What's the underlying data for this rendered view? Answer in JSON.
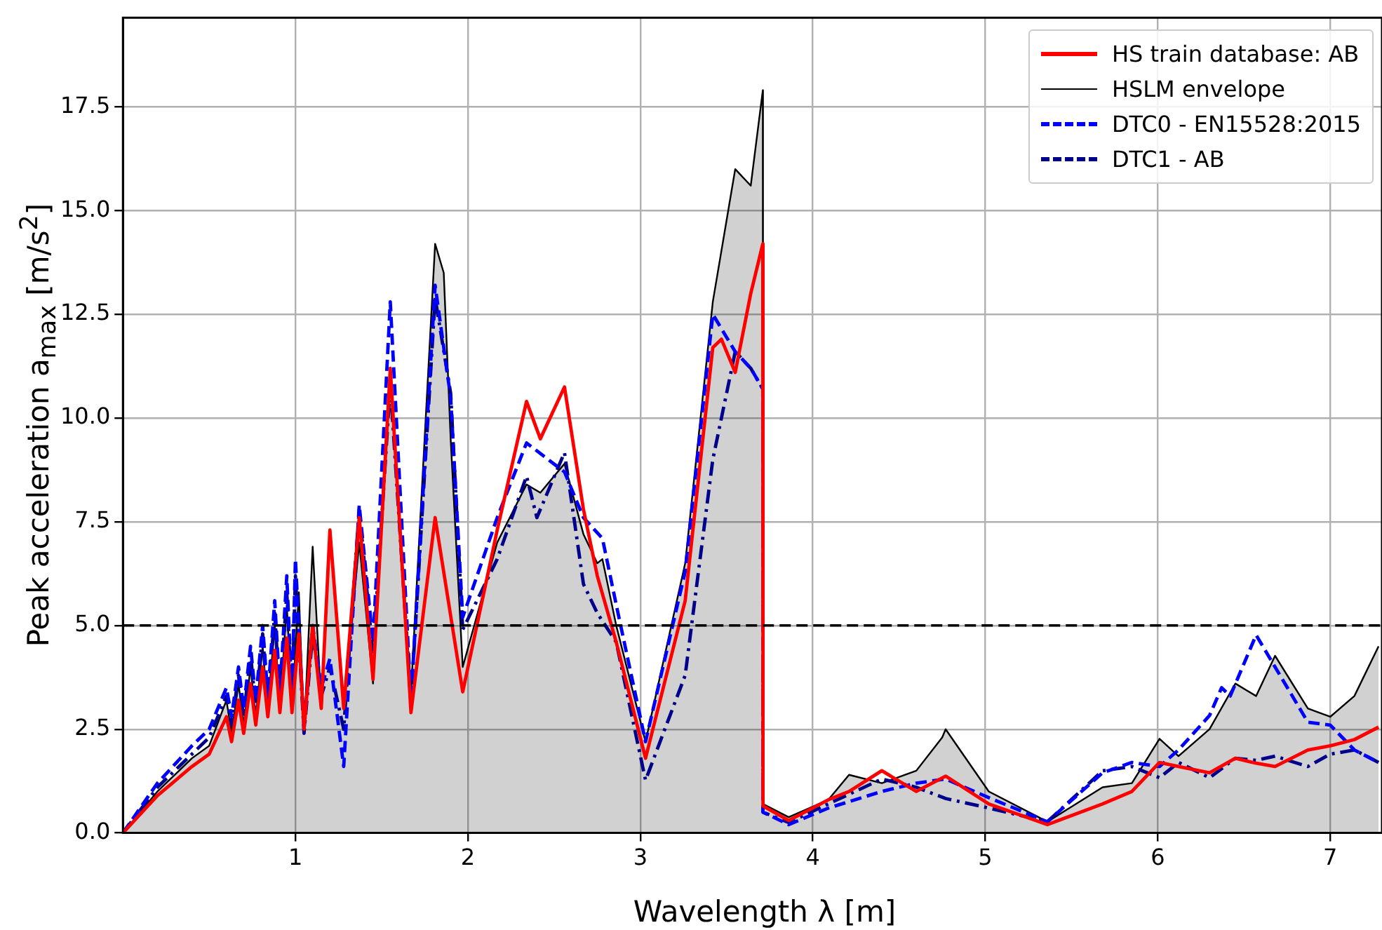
{
  "chart_data": {
    "type": "line",
    "xlabel": "Wavelength λ [m]",
    "ylabel": "Peak acceleration a$_{max}$ [m/s$^{2}$]",
    "xlim": [
      0,
      7.3
    ],
    "xticks": [
      1,
      2,
      3,
      4,
      5,
      6,
      7
    ],
    "ylim": [
      0,
      19.65
    ],
    "yticks": [
      {
        "value": 0,
        "label": "0.0"
      },
      2.5,
      {
        "value": 5,
        "label": "5.0"
      },
      7.5,
      {
        "value": 10,
        "label": "10.0"
      },
      12.5,
      {
        "value": 15,
        "label": "15.0"
      },
      17.5
    ],
    "grid": true,
    "legend": "top right",
    "marker": "none",
    "ref_lines": [
      {
        "axis": "y",
        "value": 5,
        "color": "#000000",
        "line_style": "dashed"
      }
    ],
    "series": [
      {
        "name": "HSLM envelope",
        "type": "area",
        "color": "#000000",
        "line_style": "solid",
        "x": [
          0,
          0.2,
          0.4,
          0.5,
          0.6,
          0.63,
          0.67,
          0.7,
          0.74,
          0.77,
          0.81,
          0.84,
          0.88,
          0.91,
          0.95,
          0.98,
          1.02,
          1.05,
          1.1,
          1.15,
          1.2,
          1.28,
          1.37,
          1.45,
          1.55,
          1.67,
          1.81,
          1.86,
          1.9,
          1.97,
          2.17,
          2.34,
          2.42,
          2.56,
          2.67,
          2.75,
          2.78,
          2.86,
          3.03,
          3.26,
          3.42,
          3.55,
          3.64,
          3.71,
          3.711,
          3.86,
          4.09,
          4.21,
          4.4,
          4.6,
          4.75,
          4.77,
          5.02,
          5.36,
          5.68,
          5.85,
          6.01,
          6.12,
          6.3,
          6.45,
          6.57,
          6.68,
          6.87,
          7.0,
          7.14,
          7.28
        ],
        "values": [
          0,
          1.0,
          1.8,
          2.1,
          3.2,
          2.4,
          3.6,
          2.6,
          4.0,
          2.8,
          4.5,
          3.0,
          5.0,
          3.0,
          5.5,
          3.0,
          5.8,
          2.4,
          6.9,
          3.1,
          7.3,
          3.0,
          7.0,
          3.6,
          11.0,
          3.4,
          14.2,
          13.5,
          9.5,
          4.0,
          7.0,
          8.4,
          8.2,
          8.9,
          7.2,
          6.5,
          6.6,
          5.0,
          2.2,
          6.5,
          12.8,
          16.0,
          15.6,
          17.9,
          0.7,
          0.38,
          0.8,
          1.4,
          1.2,
          1.5,
          2.3,
          2.5,
          1.0,
          0.27,
          1.1,
          1.2,
          2.27,
          1.85,
          2.5,
          3.6,
          3.3,
          4.27,
          3.0,
          2.8,
          3.3,
          4.5
        ]
      },
      {
        "name": "HS train database: AB",
        "color": "#ff0000",
        "line_style": "solid",
        "x": [
          0,
          0.2,
          0.4,
          0.5,
          0.6,
          0.63,
          0.67,
          0.7,
          0.74,
          0.77,
          0.81,
          0.84,
          0.88,
          0.91,
          0.95,
          0.98,
          1.02,
          1.05,
          1.1,
          1.15,
          1.2,
          1.28,
          1.37,
          1.45,
          1.55,
          1.67,
          1.81,
          1.97,
          2.17,
          2.34,
          2.42,
          2.56,
          2.67,
          2.75,
          2.86,
          3.03,
          3.26,
          3.42,
          3.47,
          3.55,
          3.64,
          3.71,
          3.711,
          3.86,
          4.09,
          4.21,
          4.4,
          4.6,
          4.77,
          5.02,
          5.36,
          5.68,
          5.85,
          6.01,
          6.12,
          6.3,
          6.45,
          6.57,
          6.68,
          6.87,
          7.0,
          7.14,
          7.28
        ],
        "values": [
          0,
          0.9,
          1.6,
          1.9,
          2.8,
          2.2,
          3.2,
          2.4,
          3.6,
          2.6,
          4.0,
          2.8,
          4.4,
          2.9,
          4.7,
          2.9,
          4.8,
          2.5,
          5.0,
          3.0,
          7.3,
          3.0,
          7.6,
          3.7,
          11.2,
          2.9,
          7.6,
          3.4,
          7.3,
          10.4,
          9.5,
          10.75,
          7.8,
          6.2,
          4.6,
          1.8,
          5.6,
          11.7,
          11.9,
          11.1,
          13.0,
          14.2,
          0.65,
          0.3,
          0.8,
          1.0,
          1.5,
          1.0,
          1.37,
          0.7,
          0.2,
          0.7,
          1.0,
          1.7,
          1.6,
          1.45,
          1.8,
          1.68,
          1.6,
          2.0,
          2.1,
          2.25,
          2.55
        ]
      },
      {
        "name": "DTC0 - EN15528:2015",
        "color": "#0000ff",
        "line_style": "dashed",
        "x": [
          0,
          0.2,
          0.4,
          0.5,
          0.6,
          0.63,
          0.67,
          0.7,
          0.74,
          0.77,
          0.81,
          0.84,
          0.88,
          0.91,
          0.95,
          0.98,
          1.0,
          1.05,
          1.1,
          1.15,
          1.2,
          1.28,
          1.37,
          1.45,
          1.55,
          1.67,
          1.81,
          1.9,
          1.97,
          2.17,
          2.34,
          2.56,
          2.67,
          2.78,
          2.86,
          3.03,
          3.26,
          3.42,
          3.55,
          3.64,
          3.71,
          3.711,
          3.86,
          4.09,
          4.4,
          4.6,
          4.77,
          5.02,
          5.36,
          5.68,
          5.85,
          6.01,
          6.12,
          6.3,
          6.37,
          6.42,
          6.57,
          6.68,
          6.87,
          7.0,
          7.14,
          7.28
        ],
        "values": [
          0,
          1.2,
          2.1,
          2.5,
          3.5,
          2.8,
          4.0,
          3.0,
          4.5,
          3.2,
          5.0,
          3.3,
          5.6,
          3.4,
          6.2,
          3.3,
          6.6,
          2.5,
          5.0,
          3.5,
          4.2,
          1.6,
          7.9,
          4.6,
          12.8,
          3.2,
          13.2,
          10.5,
          5.2,
          7.6,
          9.4,
          8.7,
          7.6,
          7.1,
          5.5,
          2.2,
          6.3,
          12.5,
          11.6,
          11.2,
          10.7,
          0.5,
          0.2,
          0.6,
          1.0,
          1.2,
          1.3,
          0.85,
          0.27,
          1.45,
          1.7,
          1.6,
          2.0,
          2.83,
          3.5,
          3.3,
          4.77,
          4.0,
          2.67,
          2.6,
          2.0,
          1.7
        ]
      },
      {
        "name": "DTC1 - AB",
        "color": "#00008b",
        "line_style": "dashdot",
        "x": [
          0,
          0.2,
          0.4,
          0.5,
          0.6,
          0.63,
          0.67,
          0.7,
          0.74,
          0.77,
          0.81,
          0.84,
          0.88,
          0.91,
          0.95,
          0.98,
          1.0,
          1.05,
          1.1,
          1.15,
          1.2,
          1.28,
          1.37,
          1.45,
          1.55,
          1.67,
          1.81,
          1.9,
          1.97,
          2.17,
          2.34,
          2.4,
          2.56,
          2.67,
          2.75,
          2.86,
          3.03,
          3.26,
          3.42,
          3.55,
          3.64,
          3.71,
          3.711,
          3.86,
          4.09,
          4.4,
          4.6,
          4.77,
          5.02,
          5.36,
          5.68,
          5.85,
          6.01,
          6.12,
          6.3,
          6.45,
          6.57,
          6.68,
          6.87,
          7.0,
          7.14,
          7.28
        ],
        "values": [
          0,
          1.1,
          1.9,
          2.3,
          3.3,
          2.6,
          3.8,
          2.8,
          4.3,
          3.0,
          4.8,
          3.1,
          5.3,
          3.2,
          5.8,
          3.1,
          6.2,
          2.4,
          4.8,
          3.3,
          4.0,
          2.5,
          7.8,
          4.3,
          10.8,
          3.2,
          12.9,
          10.6,
          4.9,
          6.6,
          8.6,
          7.6,
          9.17,
          6.0,
          5.3,
          4.6,
          1.27,
          3.8,
          9.0,
          11.6,
          11.2,
          10.7,
          0.5,
          0.25,
          0.7,
          1.3,
          1.1,
          0.83,
          0.6,
          0.27,
          1.5,
          1.6,
          1.33,
          1.7,
          1.33,
          1.8,
          1.75,
          1.85,
          1.6,
          1.9,
          2.0,
          1.7
        ]
      }
    ]
  }
}
